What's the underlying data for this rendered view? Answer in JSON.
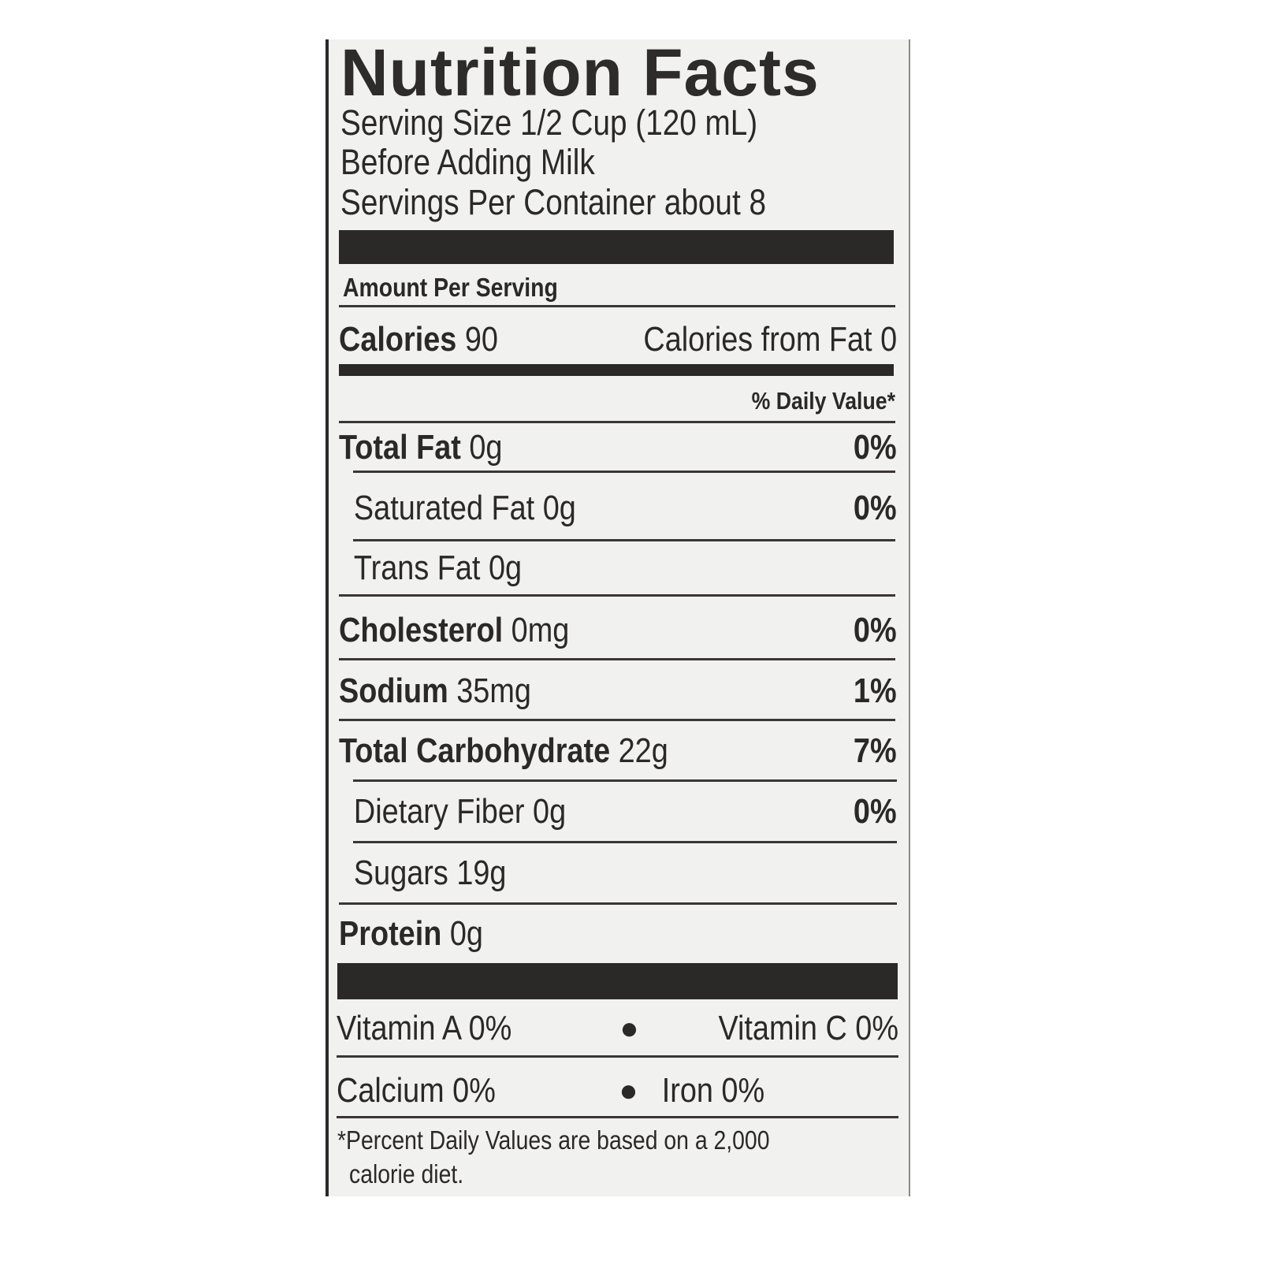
{
  "label": {
    "title": "Nutrition Facts",
    "serving_size": "Serving Size 1/2 Cup (120 mL)",
    "serving_note": "Before Adding Milk",
    "servings_per_container": "Servings Per Container about 8",
    "amount_per_serving": "Amount Per Serving",
    "calories_label": "Calories",
    "calories_value": "90",
    "calories_from_fat": "Calories from Fat 0",
    "daily_value_header": "% Daily Value*",
    "nutrients": [
      {
        "name": "Total Fat",
        "amount": "0g",
        "dv": "0%"
      },
      {
        "name": "Saturated Fat",
        "amount": "0g",
        "dv": "0%"
      },
      {
        "name": "Trans Fat",
        "amount": "0g",
        "dv": ""
      },
      {
        "name": "Cholesterol",
        "amount": "0mg",
        "dv": "0%"
      },
      {
        "name": "Sodium",
        "amount": "35mg",
        "dv": "1%"
      },
      {
        "name": "Total Carbohydrate",
        "amount": "22g",
        "dv": "7%"
      },
      {
        "name": "Dietary Fiber",
        "amount": "0g",
        "dv": "0%"
      },
      {
        "name": "Sugars",
        "amount": "19g",
        "dv": ""
      },
      {
        "name": "Protein",
        "amount": "0g",
        "dv": ""
      }
    ],
    "vitamins": [
      {
        "left": "Vitamin A 0%",
        "right": "Vitamin C 0%"
      },
      {
        "left": "Calcium 0%",
        "right": "Iron 0%"
      }
    ],
    "bullet": "●",
    "footnote_line1": "*Percent Daily Values are based on a 2,000",
    "footnote_line2": "calorie diet.",
    "colors": {
      "ink": "#2b2828",
      "paper": "#f1f1ef"
    }
  }
}
